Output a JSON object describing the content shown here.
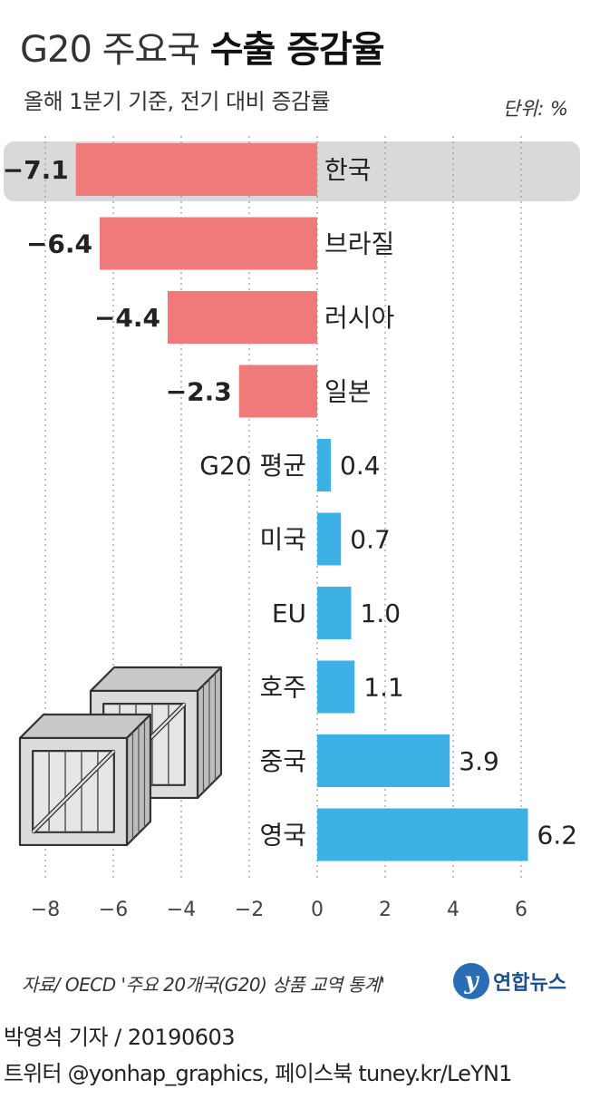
{
  "header": {
    "title_light": "G20 주요국",
    "title_bold": "수출 증감율",
    "subtitle": "올해 1분기 기준, 전기 대비 증감률",
    "unit": "단위: %"
  },
  "chart_data": {
    "type": "bar",
    "orientation": "horizontal",
    "categories": [
      "한국",
      "브라질",
      "러시아",
      "일본",
      "G20 평균",
      "미국",
      "EU",
      "호주",
      "중국",
      "영국"
    ],
    "values": [
      -7.1,
      -6.4,
      -4.4,
      -2.3,
      0.4,
      0.7,
      1.0,
      1.1,
      3.9,
      6.2
    ],
    "value_labels": [
      "−7.1",
      "−6.4",
      "−4.4",
      "−2.3",
      "0.4",
      "0.7",
      "1.0",
      "1.1",
      "3.9",
      "6.2"
    ],
    "highlight": "한국",
    "xlim": [
      -8,
      6
    ],
    "xticks": [
      -8,
      -6,
      -4,
      -2,
      0,
      2,
      4,
      6
    ],
    "xtick_labels": [
      "−8",
      "−6",
      "−4",
      "−2",
      "0",
      "2",
      "4",
      "6"
    ],
    "grid": "vertical dotted",
    "colors": {
      "negative": "#f07a7a",
      "positive": "#3db1e6",
      "highlight_bg": "#d9d9d9"
    }
  },
  "illustration": {
    "name": "wooden-crates-icon"
  },
  "source": "자료/ OECD '주요 20개국(G20) 상품 교역 통계'",
  "logo": {
    "mark": "y",
    "text": "연합뉴스"
  },
  "footer": {
    "reporter": "박영석 기자 /  20190603",
    "social": "트위터 @yonhap_graphics, 페이스북 tuney.kr/LeYN1"
  }
}
